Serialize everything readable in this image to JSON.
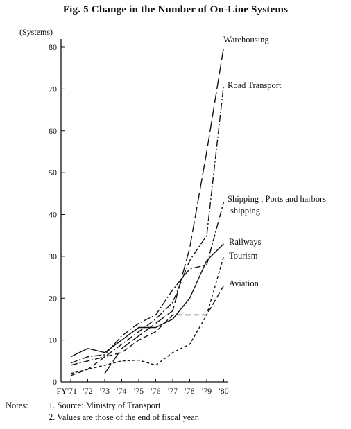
{
  "figure": {
    "title": "Fig. 5   Change in the Number of On-Line Systems"
  },
  "chart_data": {
    "type": "line",
    "title": "Fig. 5   Change in the Number of On-Line Systems",
    "ylabel": "(Systems)",
    "xlabel": "",
    "categories": [
      "FY'71",
      "'72",
      "'73",
      "'74",
      "'75",
      "'76",
      "'77",
      "'78",
      "'79",
      "'80"
    ],
    "ylim": [
      0,
      80
    ],
    "yticks": [
      0,
      10,
      20,
      30,
      40,
      50,
      60,
      70,
      80
    ],
    "grid": false,
    "legend": "inline labels at right ends of lines",
    "series": [
      {
        "name": "Warehousing",
        "style": "long-dash",
        "values": [
          null,
          null,
          2,
          8,
          11,
          14,
          17,
          32,
          55,
          80
        ],
        "label_lines": [
          "Warehousing"
        ]
      },
      {
        "name": "Road Transport",
        "style": "dash-dot",
        "values": [
          4,
          5,
          6,
          9,
          12,
          15,
          19,
          29,
          35,
          71
        ],
        "label_lines": [
          "Road Transport"
        ]
      },
      {
        "name": "Shipping , Ports and harbors shipping",
        "style": "dash-dot",
        "values": [
          4.5,
          6,
          6.5,
          11,
          14,
          16,
          22,
          27,
          28,
          43
        ],
        "label_lines": [
          "Shipping , Ports and harbors",
          "shipping"
        ]
      },
      {
        "name": "Railways",
        "style": "solid",
        "values": [
          6,
          8,
          7,
          10,
          13,
          13,
          15,
          20,
          29,
          33
        ],
        "label_lines": [
          "Railways"
        ]
      },
      {
        "name": "Tourism",
        "style": "short-dash",
        "values": [
          2,
          3,
          4,
          5,
          5.2,
          4,
          7,
          9,
          16,
          30
        ],
        "label_lines": [
          "Tourism"
        ]
      },
      {
        "name": "Aviation",
        "style": "medium-dash",
        "values": [
          1.5,
          3,
          6,
          7,
          10,
          12,
          16,
          16,
          16,
          23
        ],
        "label_lines": [
          "Aviation"
        ]
      }
    ]
  },
  "notes": {
    "heading": "Notes:",
    "items": [
      "1.   Source:   Ministry of Transport",
      "2.   Values are those of the end of fiscal year."
    ]
  }
}
